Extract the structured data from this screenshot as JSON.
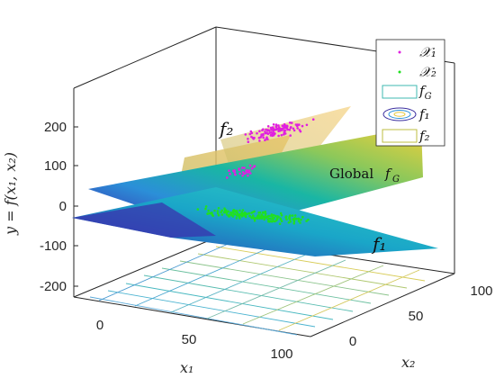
{
  "chart_data": {
    "type": "surface3d",
    "xlabel": "x₁",
    "ylabel_x2": "x₂",
    "zlabel": "y = f(x₁, x₂)",
    "x_ticks": [
      "0",
      "50",
      "100"
    ],
    "x2_ticks": [
      "0",
      "50",
      "100"
    ],
    "z_ticks": [
      "200",
      "100",
      "0",
      "-100",
      "-200"
    ],
    "zlim": [
      -230,
      270
    ],
    "annotations": {
      "f2": "f₂",
      "global_label": "Global",
      "global_sym": "f",
      "global_sub": "G",
      "f1": "f₁"
    },
    "legend": [
      {
        "label": "𝒳₁",
        "kind": "marker",
        "color": "#e020e0"
      },
      {
        "label": "𝒳₂",
        "kind": "marker",
        "color": "#20e020"
      },
      {
        "label": "f_G",
        "kind": "patch",
        "color": "#3fb8b0"
      },
      {
        "label": "f₁",
        "kind": "contour",
        "color": "#3b2fa0"
      },
      {
        "label": "f₂",
        "kind": "patch",
        "color": "#bcbc40"
      }
    ],
    "series": [
      {
        "name": "𝒳₁",
        "color": "#e020e0",
        "z_range": [
          120,
          240
        ]
      },
      {
        "name": "𝒳₂",
        "color": "#20e020",
        "z_range": [
          -40,
          0
        ]
      }
    ]
  }
}
